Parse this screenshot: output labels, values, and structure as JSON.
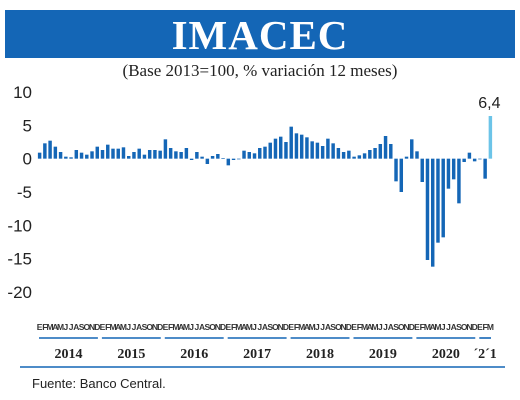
{
  "chart_data": {
    "type": "bar",
    "title": "IMACEC",
    "subtitle": "(Base 2013=100, % variación 12 meses)",
    "ylim": [
      -20,
      10
    ],
    "yticks": [
      {
        "value": 10,
        "label": "10"
      },
      {
        "value": 5,
        "label": "5"
      },
      {
        "value": 0,
        "label": "0"
      },
      {
        "value": -5,
        "label": "-5"
      },
      {
        "value": -10,
        "label": "-10"
      },
      {
        "value": -15,
        "label": "-15"
      },
      {
        "value": -20,
        "label": "-20"
      }
    ],
    "grid": false,
    "bar_color": "#1466b6",
    "highlight_color": "#6cc4e8",
    "highlight_index": 86,
    "highlight_label": "6,4",
    "month_initials": [
      "E",
      "F",
      "M",
      "A",
      "M",
      "J",
      "J",
      "A",
      "S",
      "O",
      "N",
      "D"
    ],
    "year_labels": [
      {
        "label": "2014",
        "start": 0,
        "months": 12
      },
      {
        "label": "2015",
        "start": 12,
        "months": 12
      },
      {
        "label": "2016",
        "start": 24,
        "months": 12
      },
      {
        "label": "2017",
        "start": 36,
        "months": 12
      },
      {
        "label": "2018",
        "start": 48,
        "months": 12
      },
      {
        "label": "2019",
        "start": 60,
        "months": 12
      },
      {
        "label": "2020",
        "start": 72,
        "months": 12
      },
      {
        "label": "´2´1",
        "start": 84,
        "months": 3
      }
    ],
    "values": [
      0.9,
      2.3,
      2.7,
      1.8,
      1.0,
      0.3,
      0.2,
      1.3,
      0.9,
      0.6,
      1.1,
      1.8,
      1.3,
      2.1,
      1.5,
      1.5,
      1.7,
      0.4,
      1.0,
      1.5,
      0.6,
      1.3,
      1.3,
      1.2,
      2.9,
      1.6,
      1.1,
      1.0,
      1.6,
      -0.2,
      1.0,
      0.3,
      -0.8,
      0.4,
      0.7,
      0.1,
      -1.0,
      -0.2,
      -0.1,
      1.2,
      1.0,
      0.8,
      1.6,
      1.8,
      2.4,
      3.0,
      3.3,
      2.5,
      4.8,
      3.8,
      3.6,
      3.2,
      2.6,
      2.4,
      1.9,
      3.0,
      2.3,
      1.6,
      1.0,
      1.2,
      0.3,
      0.5,
      0.8,
      1.3,
      1.6,
      2.2,
      3.4,
      2.2,
      -3.4,
      -5.0,
      0.3,
      2.9,
      1.1,
      -3.5,
      -15.2,
      -16.2,
      -12.6,
      -11.8,
      -4.5,
      -3.1,
      -6.7,
      -0.5,
      0.9,
      -0.4,
      -0.1,
      -3.0,
      6.4
    ],
    "source": "Fuente: Banco Central."
  }
}
